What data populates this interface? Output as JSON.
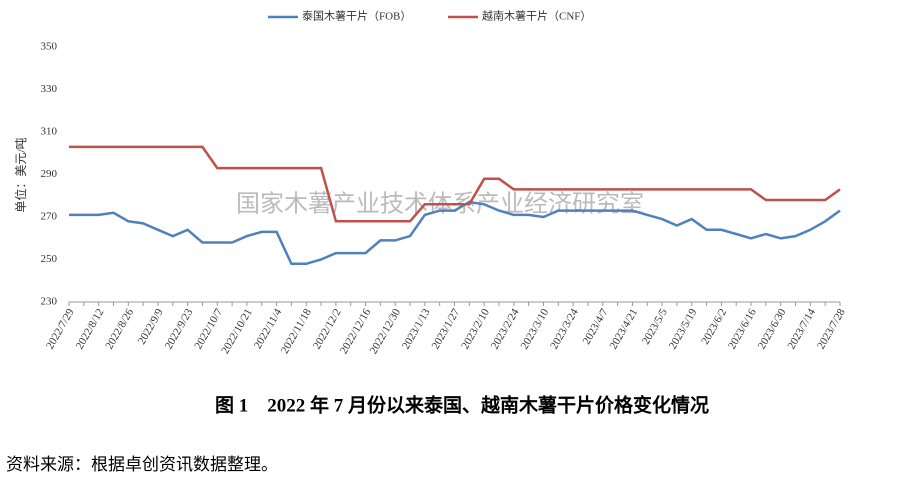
{
  "chart_data": {
    "type": "line",
    "y_label": "单位：美元/吨",
    "categories": [
      "2022/7/29",
      null,
      "2022/8/12",
      null,
      "2022/8/26",
      null,
      "2022/9/9",
      null,
      "2022/9/23",
      null,
      "2022/10/7",
      null,
      "2022/10/21",
      null,
      "2022/11/4",
      null,
      "2022/11/18",
      null,
      "2022/12/2",
      null,
      "2022/12/16",
      null,
      "2022/12/30",
      null,
      "2023/1/13",
      null,
      "2023/1/27",
      null,
      "2023/2/10",
      null,
      "2023/2/24",
      null,
      "2023/3/10",
      null,
      "2023/3/24",
      null,
      "2023/4/7",
      null,
      "2023/4/21",
      null,
      "2023/5/5",
      null,
      "2023/5/19",
      null,
      "2023/6/2",
      null,
      "2023/6/16",
      null,
      "2023/6/30",
      null,
      "2023/7/14",
      null,
      "2023/7/28"
    ],
    "series": [
      {
        "name": "泰国木薯干片（FOB）",
        "color": "#4f81bd",
        "values": [
          271,
          271,
          271,
          272,
          268,
          267,
          264,
          261,
          264,
          258,
          258,
          258,
          261,
          263,
          263,
          248,
          248,
          250,
          253,
          253,
          253,
          259,
          259,
          261,
          271,
          273,
          273,
          277,
          276,
          273,
          271,
          271,
          270,
          273,
          273,
          273,
          273,
          273,
          273,
          271,
          269,
          266,
          269,
          264,
          264,
          262,
          260,
          262,
          260,
          261,
          264,
          268,
          273
        ]
      },
      {
        "name": "越南木薯干片（CNF）",
        "color": "#c0504d",
        "values": [
          303,
          303,
          303,
          303,
          303,
          303,
          303,
          303,
          303,
          303,
          293,
          293,
          293,
          293,
          293,
          293,
          293,
          293,
          268,
          268,
          268,
          268,
          268,
          268,
          276,
          276,
          276,
          276,
          288,
          288,
          283,
          283,
          283,
          283,
          283,
          283,
          283,
          283,
          283,
          283,
          283,
          283,
          283,
          283,
          283,
          283,
          283,
          278,
          278,
          278,
          278,
          278,
          283
        ]
      }
    ],
    "ylim": [
      230,
      350
    ],
    "yticks": [
      230,
      250,
      270,
      290,
      310,
      330,
      350
    ],
    "grid": false
  },
  "watermark": "国家木薯产业技术体系产业经济研究室",
  "caption": "图 1　2022 年 7 月份以来泰国、越南木薯干片价格变化情况",
  "source": "资料来源：根据卓创资讯数据整理。"
}
